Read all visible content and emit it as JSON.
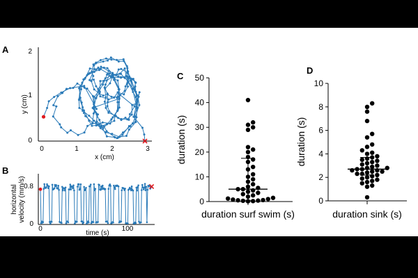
{
  "chart_data": [
    {
      "panel": "A",
      "type": "line",
      "xlabel": "x (cm)",
      "ylabel": "y (cm)",
      "xlim": [
        0,
        3.2
      ],
      "ylim": [
        0,
        2
      ],
      "xticks": [
        "0",
        "1",
        "2",
        "3"
      ],
      "yticks": [
        "0",
        "1",
        "2"
      ],
      "start": {
        "x": 0.05,
        "y": 0.55
      },
      "end": {
        "x": 2.92,
        "y": 0.0
      },
      "colors": {
        "trace": "#2a7ab8",
        "markers": "#e0191e"
      }
    },
    {
      "panel": "B",
      "type": "line",
      "xlabel": "time (s)",
      "ylabel": "horizontal velocity (mm/s)",
      "ylabel_lines": [
        "horizontal",
        "velocity (mm/s)"
      ],
      "xticks": [
        "0",
        "100"
      ],
      "yticks": [
        "0",
        "0.8"
      ],
      "xlim": [
        0,
        170
      ],
      "ylim": [
        0,
        1.0
      ],
      "high_segments": [
        [
          5,
          13
        ],
        [
          18,
          28
        ],
        [
          33,
          38
        ],
        [
          43,
          51
        ],
        [
          56,
          61
        ],
        [
          66,
          69
        ],
        [
          74,
          76
        ],
        [
          81,
          83
        ],
        [
          88,
          98
        ],
        [
          103,
          106
        ],
        [
          111,
          118
        ],
        [
          123,
          128
        ],
        [
          133,
          140
        ],
        [
          145,
          148
        ],
        [
          153,
          160
        ],
        [
          162,
          168
        ]
      ],
      "start": {
        "x": 0,
        "y": 0.78
      },
      "end": {
        "x": 168,
        "y": 0.84
      },
      "colors": {
        "trace": "#2a7ab8",
        "markers": "#e0191e"
      }
    },
    {
      "panel": "C",
      "type": "scatter",
      "xlabel": "duration surf swim (s)",
      "ylabel": "duration (s)",
      "ylim": [
        0,
        50
      ],
      "yticks": [
        "0",
        "10",
        "20",
        "30",
        "40",
        "50"
      ],
      "median": 5,
      "iqr": [
        0.5,
        17.5
      ],
      "values": [
        41,
        32,
        31,
        30,
        29,
        22,
        21,
        20,
        18,
        17,
        16,
        14,
        13,
        11,
        10,
        9,
        8,
        7,
        6,
        5.5,
        5,
        5,
        4.5,
        4,
        3.5,
        3,
        2.5,
        2,
        1.5,
        1.2,
        1,
        0.8,
        0.6,
        0.5,
        0.4,
        0.3,
        0.2,
        0.1
      ],
      "colors": {
        "points": "#000000"
      }
    },
    {
      "panel": "D",
      "type": "scatter",
      "xlabel": "duration sink (s)",
      "ylabel": "duration (s)",
      "ylim": [
        0,
        10
      ],
      "yticks": [
        "0",
        "2",
        "4",
        "6",
        "8",
        "10"
      ],
      "median": 2.7,
      "iqr": [
        2.2,
        3.7
      ],
      "values": [
        8.3,
        8.0,
        7.6,
        6.8,
        5.7,
        5.4,
        4.8,
        4.6,
        4.3,
        4.1,
        4.0,
        3.8,
        3.7,
        3.6,
        3.5,
        3.4,
        3.3,
        3.2,
        3.1,
        3.0,
        2.9,
        2.8,
        2.8,
        2.7,
        2.7,
        2.6,
        2.6,
        2.5,
        2.5,
        2.4,
        2.3,
        2.3,
        2.2,
        2.1,
        2.0,
        1.9,
        1.8,
        1.7,
        1.6,
        1.5,
        1.3,
        1.2,
        0.3
      ],
      "colors": {
        "points": "#000000"
      }
    }
  ]
}
